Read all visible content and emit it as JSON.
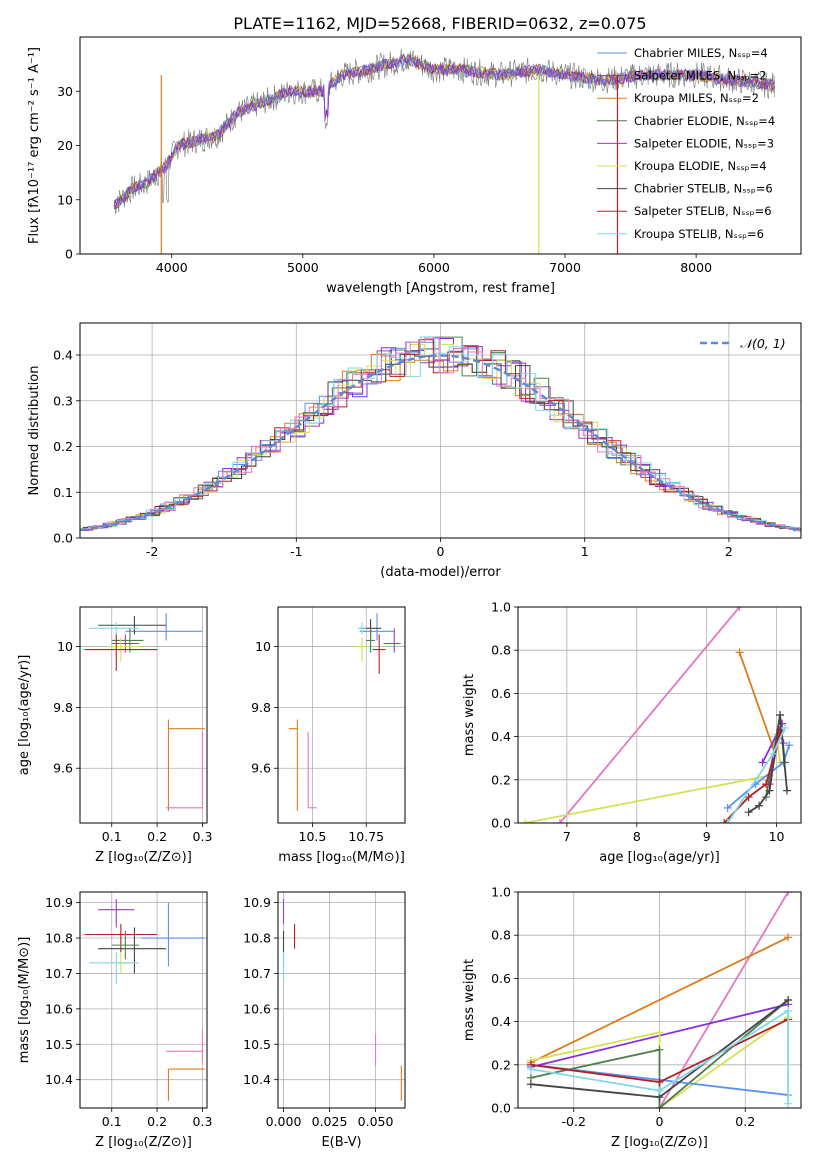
{
  "figure": {
    "title": "PLATE=1162, MJD=52668, FIBERID=0632, z=0.075"
  },
  "colors": {
    "chabrier_miles": "#5b8ff0",
    "salpeter_miles": "#8a2be2",
    "kroupa_miles": "#e07b1a",
    "chabrier_elodie": "#4f7d4f",
    "salpeter_elodie": "#9b3fb5",
    "kroupa_elodie": "#d4e157",
    "chabrier_stelib": "#444444",
    "salpeter_stelib": "#b22222",
    "kroupa_stelib": "#80d8e8",
    "pink": "#e377c2",
    "gaussian": "#5b8ad6"
  },
  "chart_data": [
    {
      "id": "spectrum",
      "type": "line",
      "xlabel": "wavelength [Angstrom, rest frame]",
      "ylabel": "Flux [fλ10⁻¹⁷ erg cm⁻² s⁻¹ A⁻¹]",
      "xlim": [
        3300,
        8800
      ],
      "ylim": [
        0,
        40
      ],
      "xticks": [
        4000,
        5000,
        6000,
        7000,
        8000
      ],
      "yticks": [
        0,
        10,
        20,
        30
      ],
      "spectrum_anchors": {
        "x": [
          3560,
          3700,
          3800,
          3900,
          3950,
          4050,
          4200,
          4350,
          4500,
          4700,
          4900,
          5150,
          5300,
          5500,
          5800,
          6000,
          6200,
          6500,
          6800,
          7000,
          7300,
          7600,
          8000,
          8300,
          8600
        ],
        "y": [
          9,
          12,
          13,
          15,
          16,
          20,
          21,
          22,
          26,
          28,
          30,
          30,
          33,
          34,
          36,
          34,
          34,
          33,
          34,
          33,
          32,
          33,
          33,
          32,
          31
        ]
      },
      "legend": [
        {
          "label": "Chabrier MILES, Nₛₛₚ=4",
          "color_key": "chabrier_miles"
        },
        {
          "label": "Salpeter MILES, Nₛₛₚ=2",
          "color_key": "salpeter_miles"
        },
        {
          "label": "Kroupa MILES, Nₛₛₚ=2",
          "color_key": "kroupa_miles"
        },
        {
          "label": "Chabrier ELODIE, Nₛₛₚ=4",
          "color_key": "chabrier_elodie"
        },
        {
          "label": "Salpeter ELODIE, Nₛₛₚ=3",
          "color_key": "salpeter_elodie"
        },
        {
          "label": "Kroupa ELODIE, Nₛₛₚ=4",
          "color_key": "kroupa_elodie"
        },
        {
          "label": "Chabrier STELIB, Nₛₛₚ=6",
          "color_key": "chabrier_stelib"
        },
        {
          "label": "Salpeter STELIB, Nₛₛₚ=6",
          "color_key": "salpeter_stelib"
        },
        {
          "label": "Kroupa STELIB, Nₛₛₚ=6",
          "color_key": "kroupa_stelib"
        }
      ],
      "legend_loc": "right"
    },
    {
      "id": "residuals",
      "type": "step-histogram",
      "xlabel": "(data-model)/error",
      "ylabel": "Normed distribution",
      "xlim": [
        -2.5,
        2.5
      ],
      "ylim": [
        0,
        0.47
      ],
      "xticks": [
        -2,
        -1,
        0,
        1,
        2
      ],
      "yticks": [
        0.0,
        0.1,
        0.2,
        0.3,
        0.4
      ],
      "grid": true,
      "legend": [
        {
          "label": "𝒩(0, 1)",
          "color_key": "gaussian"
        }
      ],
      "legend_loc": "top-right"
    },
    {
      "id": "age_vs_Z",
      "type": "errorbar",
      "xlabel": "Z [log₁₀(Z/Z⊙)]",
      "ylabel": "age  [log₁₀(age/yr)]",
      "xlim": [
        0.03,
        0.31
      ],
      "ylim": [
        9.42,
        10.13
      ],
      "xticks": [
        0.1,
        0.2,
        0.3
      ],
      "yticks": [
        9.6,
        9.8,
        10.0
      ],
      "grid": true,
      "points": [
        {
          "color_key": "chabrier_miles",
          "x": 0.22,
          "xerr": [
            0.09,
            0.08
          ],
          "y": 10.05,
          "yerr": [
            0.03,
            0.06
          ]
        },
        {
          "color_key": "chabrier_stelib",
          "x": 0.15,
          "xerr": [
            0.08,
            0.07
          ],
          "y": 10.07,
          "yerr": [
            0.03,
            0.03
          ]
        },
        {
          "color_key": "chabrier_elodie",
          "x": 0.14,
          "xerr": [
            0.04,
            0.03
          ],
          "y": 10.02,
          "yerr": [
            0.04,
            0.04
          ]
        },
        {
          "color_key": "salpeter_elodie",
          "x": 0.13,
          "xerr": [
            0.03,
            0.03
          ],
          "y": 10.01,
          "yerr": [
            0.03,
            0.03
          ]
        },
        {
          "color_key": "kroupa_elodie",
          "x": 0.12,
          "xerr": [
            0.03,
            0.04
          ],
          "y": 10.0,
          "yerr": [
            0.05,
            0.03
          ]
        },
        {
          "color_key": "salpeter_stelib",
          "x": 0.11,
          "xerr": [
            0.07,
            0.09
          ],
          "y": 9.99,
          "yerr": [
            0.07,
            0.05
          ]
        },
        {
          "color_key": "kroupa_stelib",
          "x": 0.11,
          "xerr": [
            0.06,
            0.05
          ],
          "y": 10.06,
          "yerr": [
            0.02,
            0.02
          ]
        },
        {
          "color_key": "kroupa_miles",
          "x": 0.225,
          "xerr": [
            0.0,
            0.08
          ],
          "y": 9.73,
          "yerr": [
            0.27,
            0.03
          ]
        },
        {
          "color_key": "pink",
          "x": 0.3,
          "xerr": [
            0.08,
            0.0
          ],
          "y": 9.47,
          "yerr": [
            0.0,
            0.25
          ]
        }
      ]
    },
    {
      "id": "age_vs_mass",
      "type": "errorbar",
      "xlabel": "mass [log₁₀(M/M⊙)]",
      "ylabel": "",
      "xlim": [
        10.34,
        10.93
      ],
      "ylim": [
        9.42,
        10.13
      ],
      "xticks": [
        10.5,
        10.75
      ],
      "yticks": [
        9.6,
        9.8,
        10.0
      ],
      "grid": true,
      "points": [
        {
          "color_key": "chabrier_miles",
          "x": 10.8,
          "xerr": [
            0.08,
            0.08
          ],
          "y": 10.05,
          "yerr": [
            0.03,
            0.06
          ]
        },
        {
          "color_key": "chabrier_stelib",
          "x": 10.77,
          "xerr": [
            0.05,
            0.05
          ],
          "y": 10.06,
          "yerr": [
            0.03,
            0.03
          ]
        },
        {
          "color_key": "salpeter_elodie",
          "x": 10.88,
          "xerr": [
            0.05,
            0.03
          ],
          "y": 10.01,
          "yerr": [
            0.03,
            0.05
          ]
        },
        {
          "color_key": "salpeter_stelib",
          "x": 10.81,
          "xerr": [
            0.03,
            0.03
          ],
          "y": 9.99,
          "yerr": [
            0.08,
            0.05
          ]
        },
        {
          "color_key": "kroupa_elodie",
          "x": 10.73,
          "xerr": [
            0.03,
            0.03
          ],
          "y": 10.0,
          "yerr": [
            0.05,
            0.03
          ]
        },
        {
          "color_key": "chabrier_elodie",
          "x": 10.77,
          "xerr": [
            0.02,
            0.02
          ],
          "y": 10.02,
          "yerr": [
            0.04,
            0.04
          ]
        },
        {
          "color_key": "kroupa_stelib",
          "x": 10.73,
          "xerr": [
            0.02,
            0.02
          ],
          "y": 10.06,
          "yerr": [
            0.02,
            0.02
          ]
        },
        {
          "color_key": "kroupa_miles",
          "x": 10.43,
          "xerr": [
            0.04,
            0.0
          ],
          "y": 9.73,
          "yerr": [
            0.27,
            0.03
          ]
        },
        {
          "color_key": "pink",
          "x": 10.48,
          "xerr": [
            0.0,
            0.04
          ],
          "y": 9.47,
          "yerr": [
            0.0,
            0.25
          ]
        }
      ]
    },
    {
      "id": "weight_vs_age",
      "type": "line",
      "xlabel": "age  [log₁₀(age/yr)]",
      "ylabel": "mass weight",
      "xlim": [
        6.3,
        10.35
      ],
      "ylim": [
        0,
        1
      ],
      "xticks": [
        7,
        8,
        9,
        10
      ],
      "yticks": [
        0.0,
        0.2,
        0.4,
        0.6,
        0.8,
        1.0
      ],
      "grid": true,
      "series": [
        {
          "color_key": "pink",
          "x": [
            6.9,
            9.47
          ],
          "y": [
            0.0,
            1.0
          ]
        },
        {
          "color_key": "kroupa_miles",
          "x": [
            9.47,
            9.95
          ],
          "y": [
            0.79,
            0.35
          ]
        },
        {
          "color_key": "kroupa_elodie",
          "x": [
            6.4,
            9.9,
            10.0,
            10.05
          ],
          "y": [
            0.0,
            0.22,
            0.41,
            0.28
          ]
        },
        {
          "color_key": "chabrier_miles",
          "x": [
            9.3,
            9.7,
            10.1,
            10.18
          ],
          "y": [
            0.07,
            0.18,
            0.28,
            0.36
          ]
        },
        {
          "color_key": "salpeter_miles",
          "x": [
            9.8,
            10.08
          ],
          "y": [
            0.28,
            0.46
          ]
        },
        {
          "color_key": "chabrier_elodie",
          "x": [
            9.85,
            10.05,
            10.12
          ],
          "y": [
            0.12,
            0.5,
            0.28
          ]
        },
        {
          "color_key": "salpeter_elodie",
          "x": [
            9.9,
            10.05,
            10.1
          ],
          "y": [
            0.18,
            0.43,
            0.37
          ]
        },
        {
          "color_key": "chabrier_stelib",
          "x": [
            9.6,
            9.75,
            9.9,
            10.05,
            10.15
          ],
          "y": [
            0.05,
            0.08,
            0.15,
            0.5,
            0.15
          ]
        },
        {
          "color_key": "salpeter_stelib",
          "x": [
            9.25,
            9.6,
            9.85,
            10.05
          ],
          "y": [
            0.0,
            0.12,
            0.18,
            0.42
          ]
        },
        {
          "color_key": "kroupa_stelib",
          "x": [
            9.3,
            9.95,
            10.12
          ],
          "y": [
            0.0,
            0.32,
            0.44
          ]
        }
      ]
    },
    {
      "id": "mass_vs_Z",
      "type": "errorbar",
      "xlabel": "Z [log₁₀(Z/Z⊙)]",
      "ylabel": "mass [log₁₀(M/M⊙)]",
      "xlim": [
        0.03,
        0.31
      ],
      "ylim": [
        10.32,
        10.93
      ],
      "xticks": [
        0.1,
        0.2,
        0.3
      ],
      "yticks": [
        10.4,
        10.5,
        10.6,
        10.7,
        10.8,
        10.9
      ],
      "grid": true,
      "points": [
        {
          "color_key": "chabrier_miles",
          "x": 0.225,
          "xerr": [
            0.06,
            0.08
          ],
          "y": 10.8,
          "yerr": [
            0.08,
            0.1
          ]
        },
        {
          "color_key": "salpeter_elodie",
          "x": 0.11,
          "xerr": [
            0.04,
            0.04
          ],
          "y": 10.88,
          "yerr": [
            0.05,
            0.03
          ]
        },
        {
          "color_key": "salpeter_stelib",
          "x": 0.12,
          "xerr": [
            0.08,
            0.08
          ],
          "y": 10.81,
          "yerr": [
            0.05,
            0.03
          ]
        },
        {
          "color_key": "chabrier_stelib",
          "x": 0.15,
          "xerr": [
            0.08,
            0.07
          ],
          "y": 10.77,
          "yerr": [
            0.07,
            0.06
          ]
        },
        {
          "color_key": "chabrier_elodie",
          "x": 0.13,
          "xerr": [
            0.03,
            0.03
          ],
          "y": 10.78,
          "yerr": [
            0.04,
            0.04
          ]
        },
        {
          "color_key": "kroupa_elodie",
          "x": 0.12,
          "xerr": [
            0.02,
            0.03
          ],
          "y": 10.73,
          "yerr": [
            0.03,
            0.03
          ]
        },
        {
          "color_key": "kroupa_stelib",
          "x": 0.11,
          "xerr": [
            0.06,
            0.05
          ],
          "y": 10.73,
          "yerr": [
            0.06,
            0.03
          ]
        },
        {
          "color_key": "kroupa_miles",
          "x": 0.225,
          "xerr": [
            0.0,
            0.08
          ],
          "y": 10.43,
          "yerr": [
            0.09,
            0.0
          ]
        },
        {
          "color_key": "pink",
          "x": 0.3,
          "xerr": [
            0.08,
            0.0
          ],
          "y": 10.48,
          "yerr": [
            0.03,
            0.06
          ]
        }
      ]
    },
    {
      "id": "mass_vs_EBV",
      "type": "errorbar",
      "xlabel": "E(B-V)",
      "ylabel": "",
      "xlim": [
        -0.003,
        0.066
      ],
      "ylim": [
        10.32,
        10.93
      ],
      "xticks": [
        0.0,
        0.025,
        0.05
      ],
      "xtick_labels": [
        "0.000",
        "0.025",
        "0.050"
      ],
      "yticks": [
        10.4,
        10.5,
        10.6,
        10.7,
        10.8,
        10.9
      ],
      "grid": true,
      "points": [
        {
          "color_key": "salpeter_elodie",
          "x": 0.0,
          "xerr": [
            0,
            0
          ],
          "y": 10.88,
          "yerr": [
            0.04,
            0.03
          ]
        },
        {
          "color_key": "chabrier_stelib",
          "x": 0.0,
          "xerr": [
            0,
            0
          ],
          "y": 10.77,
          "yerr": [
            0.05,
            0.05
          ]
        },
        {
          "color_key": "kroupa_stelib",
          "x": 0.0,
          "xerr": [
            0,
            0
          ],
          "y": 10.72,
          "yerr": [
            0.04,
            0.04
          ]
        },
        {
          "color_key": "salpeter_stelib",
          "x": 0.006,
          "xerr": [
            0,
            0
          ],
          "y": 10.81,
          "yerr": [
            0.04,
            0.03
          ]
        },
        {
          "color_key": "pink",
          "x": 0.05,
          "xerr": [
            0,
            0
          ],
          "y": 10.48,
          "yerr": [
            0.04,
            0.05
          ]
        },
        {
          "color_key": "kroupa_miles",
          "x": 0.064,
          "xerr": [
            0,
            0
          ],
          "y": 10.39,
          "yerr": [
            0.05,
            0.05
          ]
        }
      ]
    },
    {
      "id": "weight_vs_Z",
      "type": "line",
      "xlabel": "Z [log₁₀(Z/Z⊙)]",
      "ylabel": "mass weight",
      "xlim": [
        -0.33,
        0.33
      ],
      "ylim": [
        0,
        1
      ],
      "xticks": [
        -0.2,
        0.0,
        0.2
      ],
      "yticks": [
        0.0,
        0.2,
        0.4,
        0.6,
        0.8,
        1.0
      ],
      "grid": true,
      "series": [
        {
          "color_key": "pink",
          "x": [
            0.0,
            0.3
          ],
          "y": [
            0.0,
            1.0
          ]
        },
        {
          "color_key": "kroupa_miles",
          "x": [
            -0.3,
            0.3
          ],
          "y": [
            0.21,
            0.79
          ]
        },
        {
          "color_key": "salpeter_miles",
          "x": [
            -0.3,
            0.3
          ],
          "y": [
            0.19,
            0.48
          ]
        },
        {
          "color_key": "kroupa_elodie",
          "x": [
            -0.3,
            0.0,
            0.0,
            0.3
          ],
          "y": [
            0.22,
            0.35,
            0.0,
            0.42
          ]
        },
        {
          "color_key": "chabrier_elodie",
          "x": [
            -0.3,
            0.0,
            0.0,
            0.3
          ],
          "y": [
            0.14,
            0.27,
            0.0,
            0.5
          ]
        },
        {
          "color_key": "chabrier_miles",
          "x": [
            -0.3,
            0.0,
            0.3
          ],
          "y": [
            0.2,
            0.13,
            0.06
          ]
        },
        {
          "color_key": "chabrier_stelib",
          "x": [
            -0.3,
            0.0,
            0.3
          ],
          "y": [
            0.11,
            0.05,
            0.5
          ]
        },
        {
          "color_key": "salpeter_stelib",
          "x": [
            -0.3,
            0.0,
            0.3
          ],
          "y": [
            0.2,
            0.12,
            0.41
          ]
        },
        {
          "color_key": "kroupa_stelib",
          "x": [
            -0.3,
            0.0,
            0.3,
            0.3
          ],
          "y": [
            0.18,
            0.08,
            0.45,
            0.02
          ]
        }
      ]
    }
  ]
}
